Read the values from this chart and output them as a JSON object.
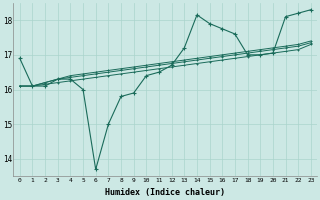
{
  "xlabel": "Humidex (Indice chaleur)",
  "bg_color": "#cce8e4",
  "line_color": "#1a6b5a",
  "grid_color": "#aad4cc",
  "xlim": [
    -0.5,
    23.5
  ],
  "ylim": [
    13.5,
    18.5
  ],
  "yticks": [
    14,
    15,
    16,
    17,
    18
  ],
  "xticks": [
    0,
    1,
    2,
    3,
    4,
    5,
    6,
    7,
    8,
    9,
    10,
    11,
    12,
    13,
    14,
    15,
    16,
    17,
    18,
    19,
    20,
    21,
    22,
    23
  ],
  "series": {
    "jagged": [
      16.9,
      16.1,
      16.1,
      16.3,
      16.3,
      16.0,
      13.7,
      15.0,
      15.8,
      15.9,
      16.4,
      16.5,
      16.7,
      17.2,
      18.15,
      17.9,
      17.75,
      17.6,
      17.0,
      17.0,
      17.05,
      18.1,
      18.2,
      18.3
    ],
    "trend1": [
      16.1,
      16.1,
      16.15,
      16.2,
      16.25,
      16.3,
      16.35,
      16.4,
      16.45,
      16.5,
      16.55,
      16.6,
      16.65,
      16.7,
      16.75,
      16.8,
      16.85,
      16.9,
      16.95,
      17.0,
      17.05,
      17.1,
      17.15,
      17.3
    ],
    "trend2": [
      16.1,
      16.1,
      16.2,
      16.3,
      16.35,
      16.4,
      16.45,
      16.5,
      16.55,
      16.6,
      16.65,
      16.7,
      16.75,
      16.8,
      16.85,
      16.9,
      16.95,
      17.0,
      17.05,
      17.1,
      17.15,
      17.2,
      17.25,
      17.35
    ],
    "trend3": [
      16.1,
      16.1,
      16.2,
      16.3,
      16.4,
      16.45,
      16.5,
      16.55,
      16.6,
      16.65,
      16.7,
      16.75,
      16.8,
      16.85,
      16.9,
      16.95,
      17.0,
      17.05,
      17.1,
      17.15,
      17.2,
      17.25,
      17.3,
      17.4
    ],
    "upper": [
      16.9,
      16.1,
      16.1,
      16.3,
      16.3,
      16.0,
      16.5,
      16.5,
      16.6,
      16.7,
      16.7,
      16.85,
      16.9,
      17.2,
      18.15,
      17.9,
      17.75,
      17.6,
      17.0,
      17.0,
      17.05,
      18.1,
      18.2,
      18.3
    ]
  }
}
